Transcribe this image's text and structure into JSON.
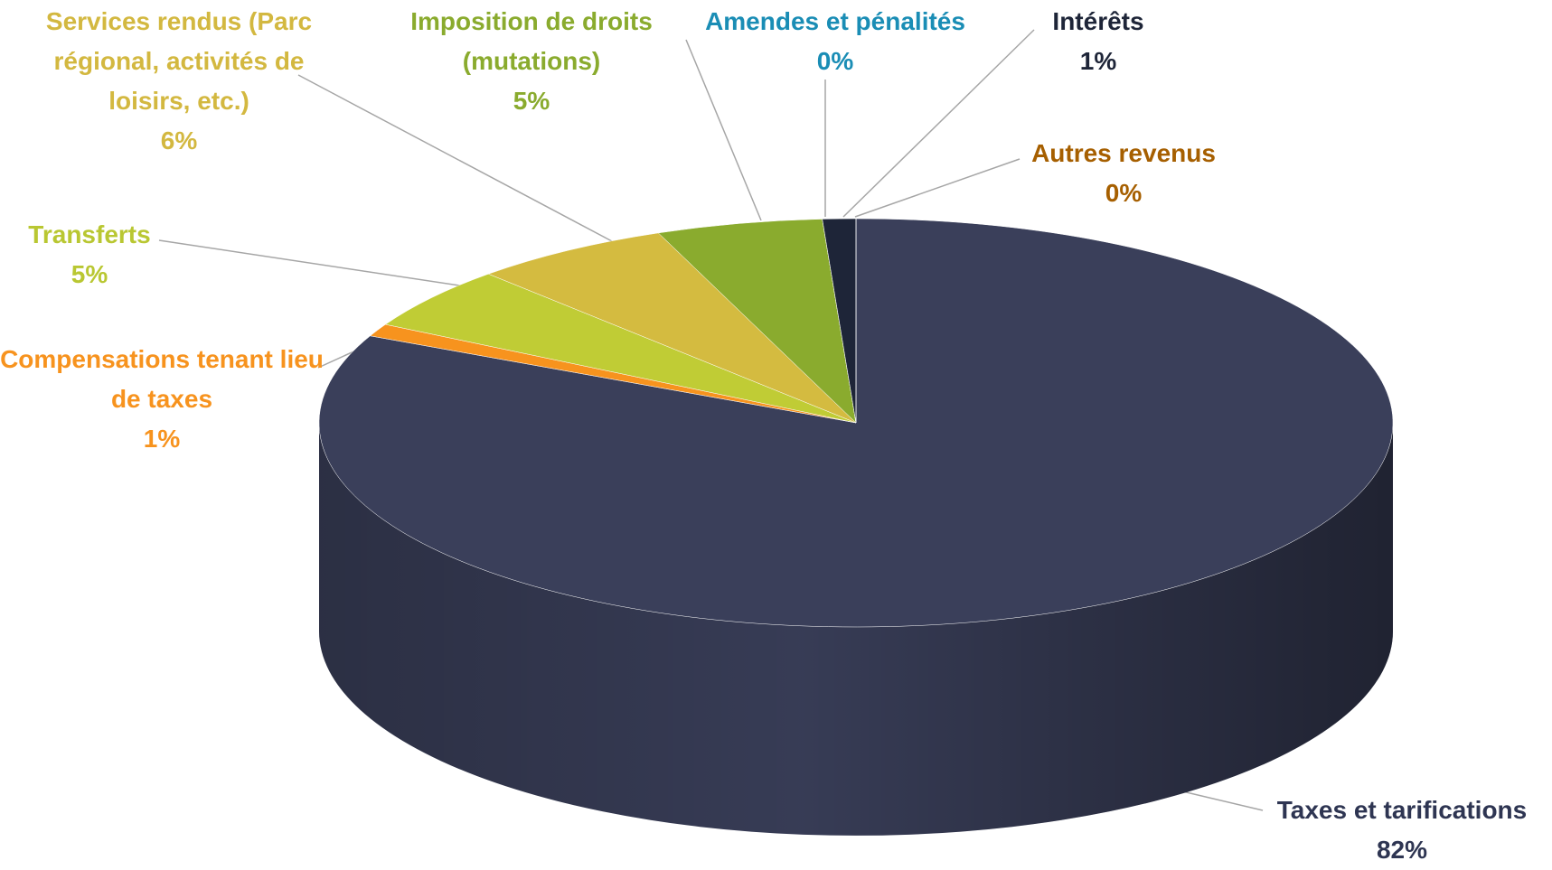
{
  "chart_data": {
    "type": "pie",
    "categories": [
      "Taxes et tarifications",
      "Compensations tenant lieu de taxes",
      "Transferts",
      "Services rendus (Parc régional, activités de loisirs, etc.)",
      "Imposition de droits (mutations)",
      "Amendes et pénalités",
      "Intérêts",
      "Autres revenus"
    ],
    "values": [
      82,
      1,
      5,
      6,
      5,
      0,
      1,
      0
    ],
    "value_labels": [
      "82%",
      "1%",
      "5%",
      "6%",
      "5%",
      "0%",
      "1%",
      "0%"
    ],
    "colors": [
      "#3a3f5a",
      "#f7931e",
      "#c0cc35",
      "#d4bb40",
      "#8aab2e",
      "#1a8db5",
      "#1e2538",
      "#c06a10"
    ],
    "label_colors": [
      "#2e3552",
      "#f7931e",
      "#b9c732",
      "#d3b840",
      "#8aab2e",
      "#1a8db5",
      "#1e2538",
      "#a65f00"
    ]
  }
}
